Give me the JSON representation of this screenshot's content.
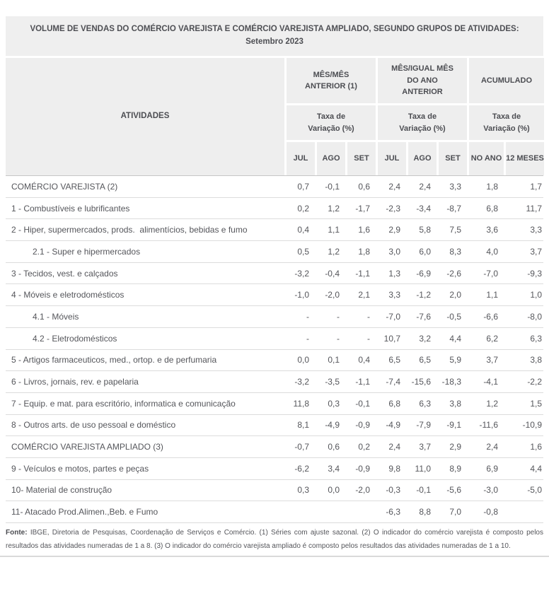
{
  "title": {
    "line1": "VOLUME DE VENDAS DO COMÉRCIO VAREJISTA E COMÉRCIO VAREJISTA AMPLIADO, SEGUNDO GRUPOS DE ATIVIDADES:",
    "line2": "Setembro 2023"
  },
  "chart_data": {
    "type": "table",
    "title": "VOLUME DE VENDAS DO COMÉRCIO VAREJISTA E COMÉRCIO VAREJISTA AMPLIADO, SEGUNDO GRUPOS DE ATIVIDADES: Setembro 2023",
    "activities_header": "ATIVIDADES",
    "groups": [
      {
        "label": "MÊS/MÊS ANTERIOR (1)",
        "unit": "Taxa de Variação (%)",
        "cols": [
          "JUL",
          "AGO",
          "SET"
        ]
      },
      {
        "label": "MÊS/IGUAL MÊS DO ANO ANTERIOR",
        "unit": "Taxa de Variação (%)",
        "cols": [
          "JUL",
          "AGO",
          "SET"
        ]
      },
      {
        "label": "ACUMULADO",
        "unit": "Taxa de Variação (%)",
        "cols": [
          "NO ANO",
          "12 MESES"
        ]
      }
    ],
    "rows": [
      {
        "activity": "COMÉRCIO VAREJISTA (2)",
        "indent": false,
        "values": [
          "0,7",
          "-0,1",
          "0,6",
          "2,4",
          "2,4",
          "3,3",
          "1,8",
          "1,7"
        ]
      },
      {
        "activity": "1 - Combustíveis e lubrificantes",
        "indent": false,
        "values": [
          "0,2",
          "1,2",
          "-1,7",
          "-2,3",
          "-3,4",
          "-8,7",
          "6,8",
          "11,7"
        ]
      },
      {
        "activity": "2 - Hiper, supermercados, prods.  alimentícios, bebidas e fumo",
        "indent": false,
        "values": [
          "0,4",
          "1,1",
          "1,6",
          "2,9",
          "5,8",
          "7,5",
          "3,6",
          "3,3"
        ]
      },
      {
        "activity": "2.1 - Super e hipermercados",
        "indent": true,
        "values": [
          "0,5",
          "1,2",
          "1,8",
          "3,0",
          "6,0",
          "8,3",
          "4,0",
          "3,7"
        ]
      },
      {
        "activity": "3 - Tecidos, vest. e calçados",
        "indent": false,
        "values": [
          "-3,2",
          "-0,4",
          "-1,1",
          "1,3",
          "-6,9",
          "-2,6",
          "-7,0",
          "-9,3"
        ]
      },
      {
        "activity": "4 - Móveis e eletrodomésticos",
        "indent": false,
        "values": [
          "-1,0",
          "-2,0",
          "2,1",
          "3,3",
          "-1,2",
          "2,0",
          "1,1",
          "1,0"
        ]
      },
      {
        "activity": "4.1 - Móveis",
        "indent": true,
        "values": [
          "-",
          "-",
          "-",
          "-7,0",
          "-7,6",
          "-0,5",
          "-6,6",
          "-8,0"
        ]
      },
      {
        "activity": "4.2 - Eletrodomésticos",
        "indent": true,
        "values": [
          "-",
          "-",
          "-",
          "10,7",
          "3,2",
          "4,4",
          "6,2",
          "6,3"
        ]
      },
      {
        "activity": "5 - Artigos farmaceuticos, med., ortop. e de perfumaria",
        "indent": false,
        "values": [
          "0,0",
          "0,1",
          "0,4",
          "6,5",
          "6,5",
          "5,9",
          "3,7",
          "3,8"
        ]
      },
      {
        "activity": "6 - Livros, jornais, rev. e papelaria",
        "indent": false,
        "values": [
          "-3,2",
          "-3,5",
          "-1,1",
          "-7,4",
          "-15,6",
          "-18,3",
          "-4,1",
          "-2,2"
        ]
      },
      {
        "activity": "7 - Equip. e mat. para escritório, informatica e comunicação",
        "indent": false,
        "values": [
          "11,8",
          "0,3",
          "-0,1",
          "6,8",
          "6,3",
          "3,8",
          "1,2",
          "1,5"
        ]
      },
      {
        "activity": "8 - Outros arts. de uso pessoal e doméstico",
        "indent": false,
        "values": [
          "8,1",
          "-4,9",
          "-0,9",
          "-4,9",
          "-7,9",
          "-9,1",
          "-11,6",
          "-10,9"
        ]
      },
      {
        "activity": "COMÉRCIO VAREJISTA AMPLIADO (3)",
        "indent": false,
        "values": [
          "-0,7",
          "0,6",
          "0,2",
          "2,4",
          "3,7",
          "2,9",
          "2,4",
          "1,6"
        ]
      },
      {
        "activity": "9 - Veículos e motos, partes e peças",
        "indent": false,
        "values": [
          "-6,2",
          "3,4",
          "-0,9",
          "9,8",
          "11,0",
          "8,9",
          "6,9",
          "4,4"
        ]
      },
      {
        "activity": "10- Material de construção",
        "indent": false,
        "values": [
          "0,3",
          "0,0",
          "-2,0",
          "-0,3",
          "-0,1",
          "-5,6",
          "-3,0",
          "-5,0"
        ]
      },
      {
        "activity": "11- Atacado Prod.Alimen.,Beb. e Fumo",
        "indent": false,
        "values": [
          "",
          "",
          "",
          "-6,3",
          "8,8",
          "7,0",
          "-0,8",
          ""
        ]
      }
    ],
    "footer": {
      "source_label": "Fonte:",
      "source_text": " IBGE, Diretoria de Pesquisas, Coordenação de Serviços e Comércio.  (1) Séries com ajuste sazonal. (2) O indicador do comércio varejista é composto pelos resultados das atividades numeradas de 1 a 8.  (3) O indicador do comércio varejista ampliado é composto pelos resultados das atividades numeradas de 1 a 10."
    },
    "colors": {
      "header_bg": "#eeeeee",
      "text": "#55565b",
      "row_border": "#dcdcdc",
      "header_border": "#c6c6c6"
    }
  }
}
